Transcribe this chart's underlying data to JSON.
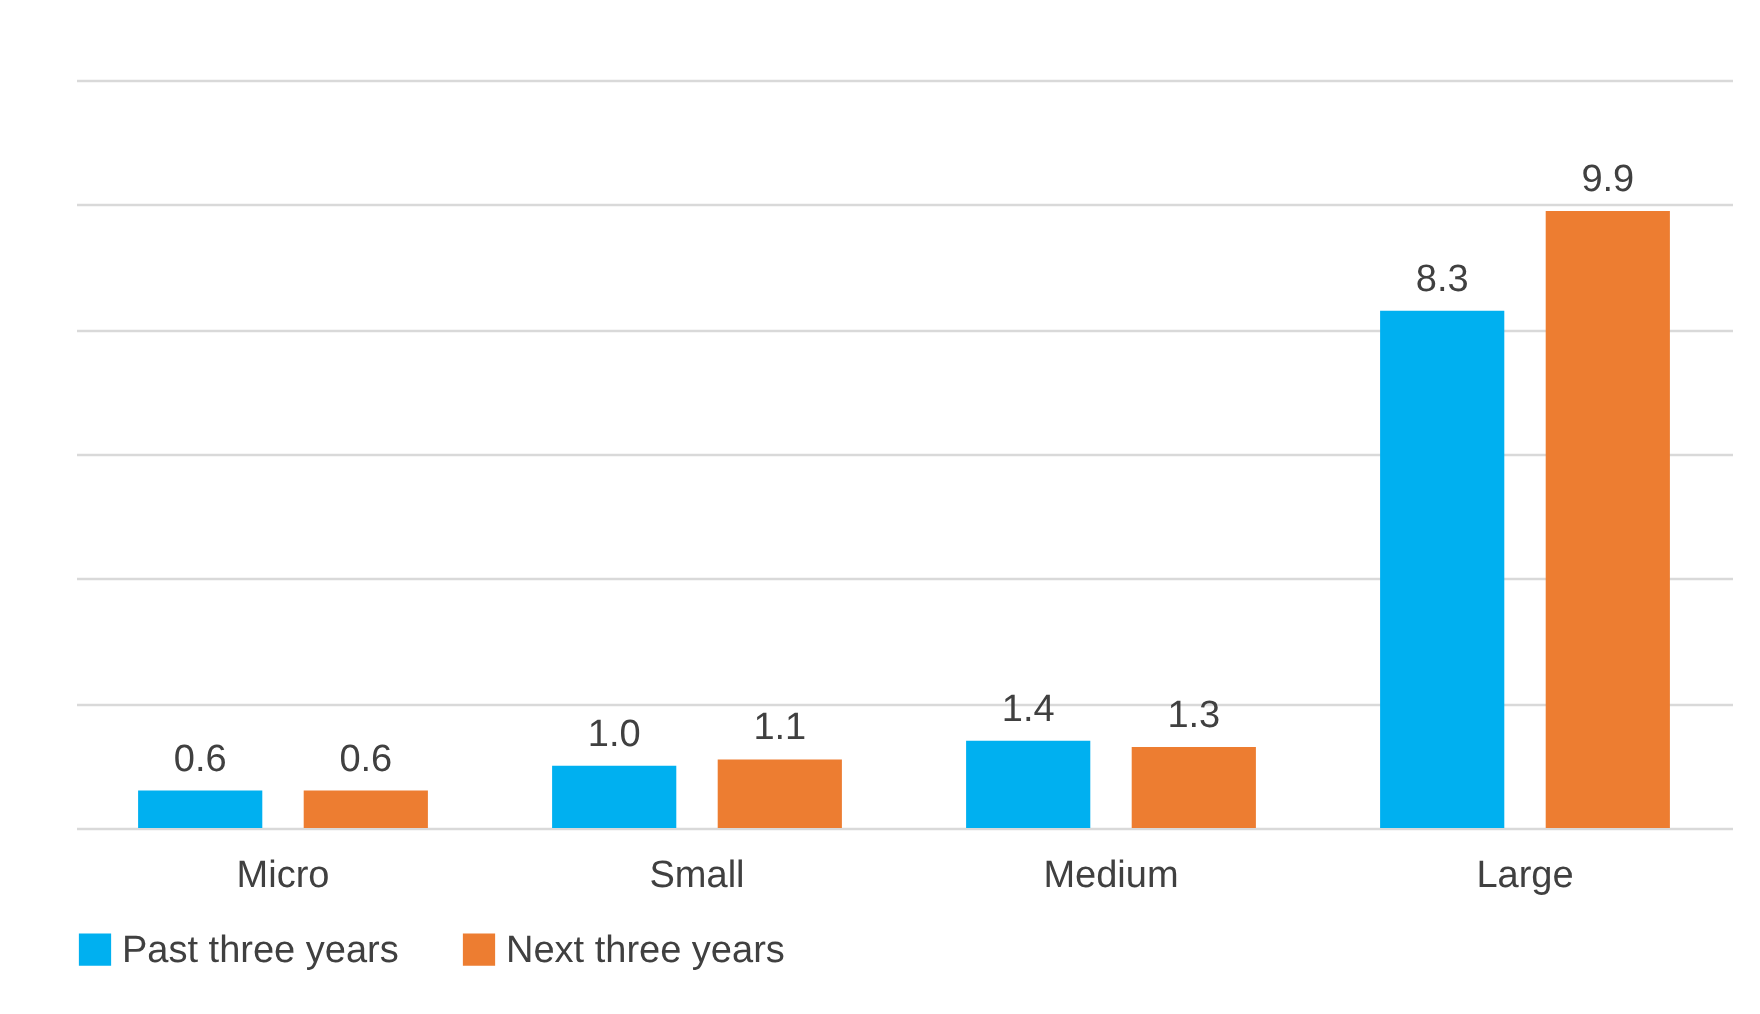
{
  "chart_data": {
    "type": "bar",
    "categories": [
      "Micro",
      "Small",
      "Medium",
      "Large"
    ],
    "series": [
      {
        "name": "Past three years",
        "color": "#00b0f0",
        "values": [
          0.6,
          1.0,
          1.4,
          8.3
        ],
        "value_labels": [
          "0.6",
          "1.0",
          "1.4",
          "8.3"
        ]
      },
      {
        "name": "Next three years",
        "color": "#ed7d31",
        "values": [
          0.6,
          1.1,
          1.3,
          9.9
        ],
        "value_labels": [
          "0.6",
          "1.1",
          "1.3",
          "9.9"
        ]
      }
    ],
    "ylim": [
      0,
      12
    ],
    "yticks": [
      {
        "value": 0,
        "label": null
      },
      {
        "value": 2,
        "label": null
      },
      {
        "value": 4,
        "label": null
      },
      {
        "value": 6,
        "label": null
      },
      {
        "value": 8,
        "label": null
      },
      {
        "value": 10,
        "label": null
      },
      {
        "value": 12,
        "label": null
      }
    ],
    "grid": true,
    "legend": "bottom",
    "tick_labels": "x"
  }
}
